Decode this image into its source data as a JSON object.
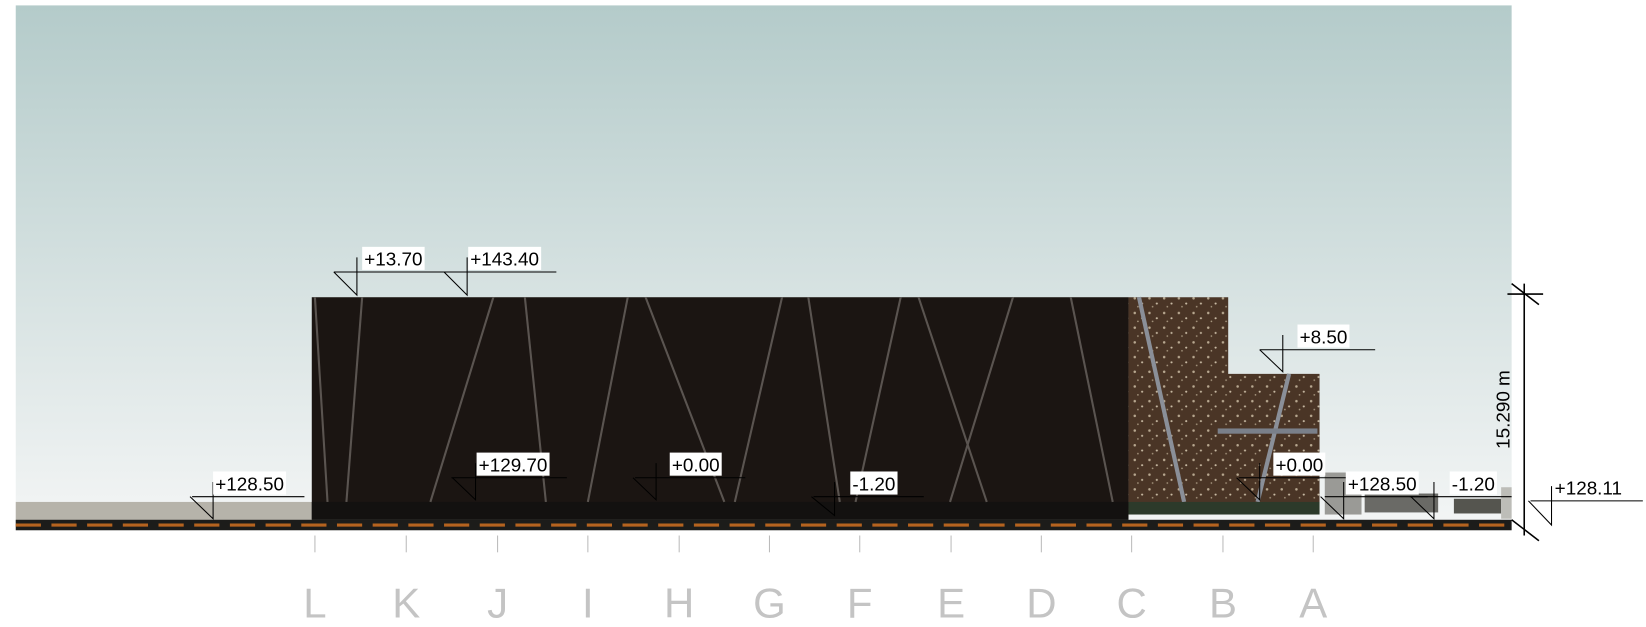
{
  "elevation_labels": [
    "+13.70",
    "+143.40",
    "+8.50",
    "+128.50",
    "+129.70",
    "+0.00",
    "-1.20",
    "+0.00",
    "+128.50",
    "-1.20",
    "+128.11"
  ],
  "dimension_label": "15.290 m",
  "grid_axes": [
    "L",
    "K",
    "J",
    "I",
    "H",
    "G",
    "F",
    "E",
    "D",
    "C",
    "B",
    "A"
  ]
}
